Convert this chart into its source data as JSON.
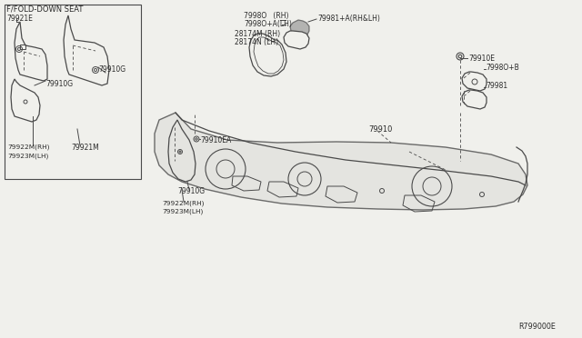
{
  "bg_color": "#f0f0ec",
  "line_color": "#4a4a4a",
  "text_color": "#2a2a2a",
  "diagram_ref": "R799000E",
  "labels": {
    "fold_down_seat": "F/FOLD-DOWN SEAT",
    "p79921E": "79921E",
    "p79910G_1": "79910G",
    "p79910G_2": "79910G",
    "p79922M_1": "79922M(RH)",
    "p79923M_1": "79923M(LH)",
    "p79921M": "79921M",
    "p79980": "7998O   (RH)",
    "p79980A": "7998O+A(LH)",
    "p79981A": "79981+A(RH&LH)",
    "p28174M": "28174M (RH)",
    "p28174N": "28174N (LH)",
    "p79910": "79910",
    "p79910E": "79910E",
    "p79980B": "7998O+B",
    "p79981": "79981",
    "p79910EA": "79910EA",
    "p79910G_3": "79910G",
    "p79922M_2": "79922M(RH)",
    "p79923M_2": "79923M(LH)"
  }
}
